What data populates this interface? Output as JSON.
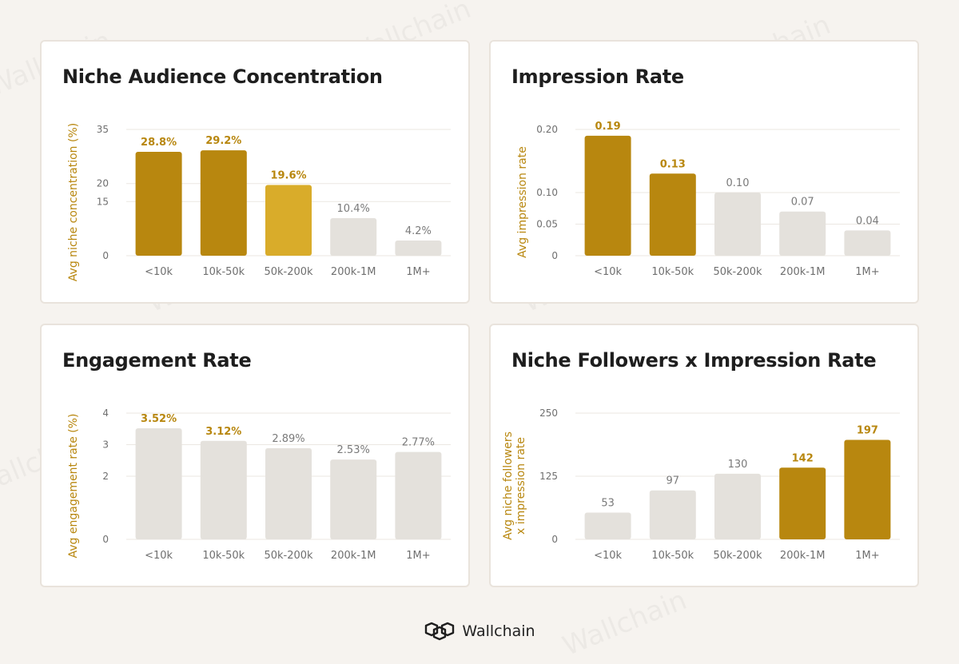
{
  "brand": {
    "name": "Wallchain",
    "watermark": "Wallchain"
  },
  "colors": {
    "gold": "#b8870f",
    "gold_light": "#d9ac2a",
    "grey": "#e4e1dc",
    "grid": "#ebe7e2"
  },
  "chart_data": [
    {
      "type": "bar",
      "title": "Niche Audience Concentration",
      "ylabel": "Avg niche concentration (%)",
      "categories": [
        "<10k",
        "10k-50k",
        "50k-200k",
        "200k-1M",
        "1M+"
      ],
      "values": [
        28.8,
        29.2,
        19.6,
        10.4,
        4.2
      ],
      "value_labels": [
        "28.8%",
        "29.2%",
        "19.6%",
        "10.4%",
        "4.2%"
      ],
      "ylim": [
        0,
        35
      ],
      "yticks": [
        0,
        15,
        20,
        35
      ],
      "ytick_labels": [
        "0",
        "15",
        "20",
        "35"
      ],
      "highlight": [
        "gold",
        "gold",
        "gold_light",
        "grey",
        "grey"
      ],
      "grid": true
    },
    {
      "type": "bar",
      "title": "Impression Rate",
      "ylabel": "Avg impression rate",
      "categories": [
        "<10k",
        "10k-50k",
        "50k-200k",
        "200k-1M",
        "1M+"
      ],
      "values": [
        0.19,
        0.13,
        0.1,
        0.07,
        0.04
      ],
      "value_labels": [
        "0.19",
        "0.13",
        "0.10",
        "0.07",
        "0.04"
      ],
      "ylim": [
        0,
        0.2
      ],
      "yticks": [
        0,
        0.05,
        0.1,
        0.2
      ],
      "ytick_labels": [
        "0",
        "0.05",
        "0.10",
        "0.20"
      ],
      "highlight": [
        "gold",
        "gold",
        "grey",
        "grey",
        "grey"
      ],
      "grid": true
    },
    {
      "type": "bar",
      "title": "Engagement Rate",
      "ylabel": "Avg engagement rate (%)",
      "categories": [
        "<10k",
        "10k-50k",
        "50k-200k",
        "200k-1M",
        "1M+"
      ],
      "values": [
        3.52,
        3.12,
        2.89,
        2.53,
        2.77
      ],
      "value_labels": [
        "3.52%",
        "3.12%",
        "2.89%",
        "2.53%",
        "2.77%"
      ],
      "ylim": [
        0,
        4
      ],
      "yticks": [
        0,
        2,
        3,
        4
      ],
      "ytick_labels": [
        "0",
        "2",
        "3",
        "4"
      ],
      "highlight": [
        "grey",
        "grey",
        "grey",
        "grey",
        "grey"
      ],
      "label_highlight": [
        "gold",
        "gold",
        "grey",
        "grey",
        "grey"
      ],
      "grid": true
    },
    {
      "type": "bar",
      "title": "Niche Followers x Impression Rate",
      "ylabel": [
        "Avg niche followers",
        "x impression rate"
      ],
      "categories": [
        "<10k",
        "10k-50k",
        "50k-200k",
        "200k-1M",
        "1M+"
      ],
      "values": [
        53,
        97,
        130,
        142,
        197
      ],
      "value_labels": [
        "53",
        "97",
        "130",
        "142",
        "197"
      ],
      "ylim": [
        0,
        250
      ],
      "yticks": [
        0,
        125,
        250
      ],
      "ytick_labels": [
        "0",
        "125",
        "250"
      ],
      "highlight": [
        "grey",
        "grey",
        "grey",
        "gold",
        "gold"
      ],
      "grid": true
    }
  ]
}
